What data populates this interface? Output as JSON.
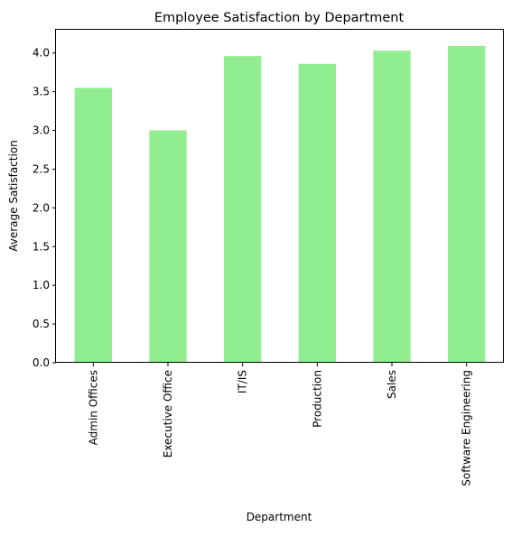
{
  "chart_data": {
    "type": "bar",
    "title": "Employee Satisfaction by Department",
    "xlabel": "Department",
    "ylabel": "Average Satisfaction",
    "categories": [
      "Admin Offices",
      "Executive Office",
      "IT/IS",
      "Production",
      "Sales",
      "Software Engineering"
    ],
    "values": [
      3.55,
      3.0,
      3.96,
      3.86,
      4.03,
      4.09
    ],
    "yticks": [
      "0.0",
      "0.5",
      "1.0",
      "1.5",
      "2.0",
      "2.5",
      "3.0",
      "3.5",
      "4.0"
    ],
    "ylim": [
      0,
      4.3
    ],
    "bar_color": "#90ee90",
    "grid": false,
    "legend": false
  }
}
